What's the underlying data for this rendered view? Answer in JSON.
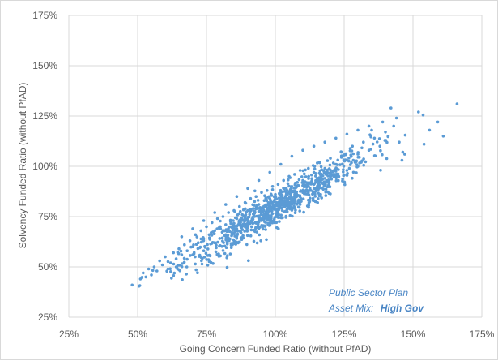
{
  "chart_data": {
    "type": "scatter",
    "xlabel": "Going Concern Funded Ratio (without PfAD)",
    "ylabel": "Solvency Funded Ratio (without PfAD)",
    "xlim": [
      0.25,
      1.75
    ],
    "ylim": [
      0.25,
      1.75
    ],
    "x_ticks": [
      "25%",
      "50%",
      "75%",
      "100%",
      "125%",
      "150%",
      "175%"
    ],
    "y_ticks": [
      "25%",
      "50%",
      "75%",
      "100%",
      "125%",
      "150%",
      "175%"
    ],
    "grid": "vertical and horizontal major gridlines",
    "legend": "none",
    "marker_color": "#5b9bd5",
    "annotation": {
      "line1": "Public Sector Plan",
      "line2_label": "Asset Mix:",
      "line2_value": "High Gov"
    },
    "series": [
      {
        "description_note": "Approximately 1000 simulated outcomes; centroid near (1.00, 0.79), strong positive correlation",
        "points": [
          [
            0.48,
            0.41
          ],
          [
            0.51,
            0.44
          ],
          [
            0.52,
            0.47
          ],
          [
            0.53,
            0.45
          ],
          [
            0.54,
            0.49
          ],
          [
            0.55,
            0.46
          ],
          [
            0.56,
            0.5
          ],
          [
            0.57,
            0.48
          ],
          [
            0.58,
            0.53
          ],
          [
            0.59,
            0.51
          ],
          [
            0.6,
            0.55
          ],
          [
            0.62,
            0.52
          ],
          [
            0.63,
            0.57
          ],
          [
            0.64,
            0.54
          ],
          [
            0.65,
            0.59
          ],
          [
            0.66,
            0.56
          ],
          [
            0.67,
            0.61
          ],
          [
            0.68,
            0.58
          ],
          [
            0.69,
            0.63
          ],
          [
            0.7,
            0.6
          ],
          [
            0.71,
            0.66
          ],
          [
            0.72,
            0.62
          ],
          [
            0.73,
            0.68
          ],
          [
            0.74,
            0.64
          ],
          [
            0.75,
            0.7
          ],
          [
            0.76,
            0.66
          ],
          [
            0.77,
            0.72
          ],
          [
            0.78,
            0.68
          ],
          [
            0.79,
            0.74
          ],
          [
            0.8,
            0.7
          ],
          [
            0.81,
            0.75
          ],
          [
            0.82,
            0.71
          ],
          [
            0.83,
            0.77
          ],
          [
            0.84,
            0.73
          ],
          [
            0.85,
            0.78
          ],
          [
            0.86,
            0.74
          ],
          [
            0.87,
            0.8
          ],
          [
            0.88,
            0.76
          ],
          [
            0.89,
            0.82
          ],
          [
            0.9,
            0.78
          ],
          [
            0.91,
            0.84
          ],
          [
            0.92,
            0.79
          ],
          [
            0.93,
            0.85
          ],
          [
            0.94,
            0.81
          ],
          [
            0.95,
            0.87
          ],
          [
            0.96,
            0.83
          ],
          [
            0.97,
            0.88
          ],
          [
            0.98,
            0.84
          ],
          [
            0.99,
            0.9
          ],
          [
            1.0,
            0.86
          ],
          [
            1.01,
            0.91
          ],
          [
            1.02,
            0.87
          ],
          [
            1.03,
            0.93
          ],
          [
            1.04,
            0.89
          ],
          [
            1.05,
            0.95
          ],
          [
            1.06,
            0.9
          ],
          [
            1.07,
            0.96
          ],
          [
            1.08,
            0.92
          ],
          [
            1.09,
            0.98
          ],
          [
            1.1,
            0.93
          ],
          [
            1.12,
            0.99
          ],
          [
            1.14,
            0.97
          ],
          [
            1.16,
            1.02
          ],
          [
            1.18,
            0.99
          ],
          [
            1.2,
            1.04
          ],
          [
            1.22,
            1.01
          ],
          [
            1.24,
            1.07
          ],
          [
            1.26,
            1.03
          ],
          [
            1.28,
            1.1
          ],
          [
            1.3,
            1.06
          ],
          [
            1.32,
            1.12
          ],
          [
            1.34,
            1.08
          ],
          [
            1.36,
            1.14
          ],
          [
            1.38,
            1.1
          ],
          [
            1.4,
            1.17
          ],
          [
            1.42,
            1.29
          ],
          [
            1.44,
            1.24
          ],
          [
            1.46,
            1.03
          ],
          [
            1.47,
            1.06
          ],
          [
            1.52,
            1.27
          ],
          [
            1.54,
            1.11
          ],
          [
            1.56,
            1.18
          ],
          [
            1.59,
            1.22
          ],
          [
            1.61,
            1.15
          ],
          [
            1.66,
            1.31
          ],
          [
            1.43,
            1.2
          ],
          [
            1.45,
            1.12
          ],
          [
            1.41,
            1.15
          ],
          [
            1.39,
            1.22
          ],
          [
            1.35,
            1.18
          ],
          [
            0.61,
            0.49
          ],
          [
            0.64,
            0.5
          ],
          [
            0.7,
            0.56
          ],
          [
            0.74,
            0.58
          ],
          [
            0.78,
            0.62
          ],
          [
            0.82,
            0.66
          ],
          [
            0.86,
            0.69
          ],
          [
            0.9,
            0.72
          ],
          [
            0.94,
            0.75
          ],
          [
            0.98,
            0.78
          ],
          [
            1.02,
            0.81
          ],
          [
            1.06,
            0.84
          ],
          [
            1.1,
            0.87
          ],
          [
            1.14,
            0.91
          ],
          [
            1.18,
            0.94
          ],
          [
            1.22,
            0.96
          ],
          [
            1.26,
            0.98
          ],
          [
            1.3,
            1.0
          ],
          [
            0.66,
            0.65
          ],
          [
            0.7,
            0.69
          ],
          [
            0.74,
            0.73
          ],
          [
            0.78,
            0.77
          ],
          [
            0.82,
            0.81
          ],
          [
            0.86,
            0.85
          ],
          [
            0.9,
            0.89
          ],
          [
            0.94,
            0.93
          ],
          [
            0.98,
            0.97
          ],
          [
            1.02,
            1.01
          ],
          [
            1.06,
            1.05
          ],
          [
            1.1,
            1.08
          ],
          [
            1.14,
            1.1
          ],
          [
            1.18,
            1.12
          ],
          [
            1.22,
            1.14
          ],
          [
            1.26,
            1.16
          ],
          [
            1.3,
            1.18
          ],
          [
            1.34,
            1.2
          ]
        ]
      }
    ]
  }
}
